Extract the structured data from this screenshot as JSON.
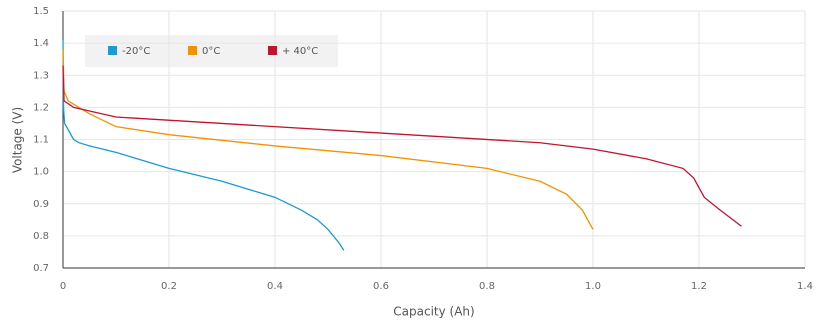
{
  "chart_data": {
    "type": "line",
    "x_label": "Capacity (Ah)",
    "y_label": "Voltage (V)",
    "xlim": [
      0,
      1.4
    ],
    "ylim": [
      0.7,
      1.5
    ],
    "xticks": [
      0,
      0.2,
      0.4,
      0.6,
      0.8,
      {
        "value": 1,
        "label": "1.0"
      },
      1.2,
      1.4
    ],
    "yticks": [
      0.7,
      0.8,
      0.9,
      {
        "value": 1,
        "label": "1.0"
      },
      1.1,
      1.2,
      1.3,
      1.4,
      1.5
    ],
    "grid": true,
    "legend": "top-left",
    "series": [
      {
        "name": "-20°C",
        "color": "#1a9ad6",
        "x": [
          0,
          0.001,
          0.003,
          0.01,
          0.02,
          0.03,
          0.05,
          0.1,
          0.2,
          0.3,
          0.4,
          0.45,
          0.48,
          0.5,
          0.52,
          0.53
        ],
        "values": [
          1.41,
          1.2,
          1.15,
          1.13,
          1.1,
          1.09,
          1.08,
          1.06,
          1.01,
          0.97,
          0.92,
          0.88,
          0.85,
          0.82,
          0.78,
          0.755
        ]
      },
      {
        "name": "0°C",
        "color": "#f39200",
        "x": [
          0,
          0.002,
          0.01,
          0.05,
          0.1,
          0.2,
          0.4,
          0.6,
          0.8,
          0.9,
          0.95,
          0.98,
          1.0
        ],
        "values": [
          1.38,
          1.25,
          1.22,
          1.18,
          1.14,
          1.115,
          1.08,
          1.05,
          1.01,
          0.97,
          0.93,
          0.88,
          0.82
        ]
      },
      {
        "name": "+ 40°C",
        "color": "#c0152f",
        "x": [
          0,
          0.002,
          0.02,
          0.1,
          0.3,
          0.6,
          0.9,
          1.0,
          1.1,
          1.17,
          1.19,
          1.21,
          1.24,
          1.28
        ],
        "values": [
          1.33,
          1.22,
          1.2,
          1.17,
          1.15,
          1.12,
          1.09,
          1.07,
          1.04,
          1.01,
          0.98,
          0.92,
          0.88,
          0.83
        ]
      }
    ]
  }
}
